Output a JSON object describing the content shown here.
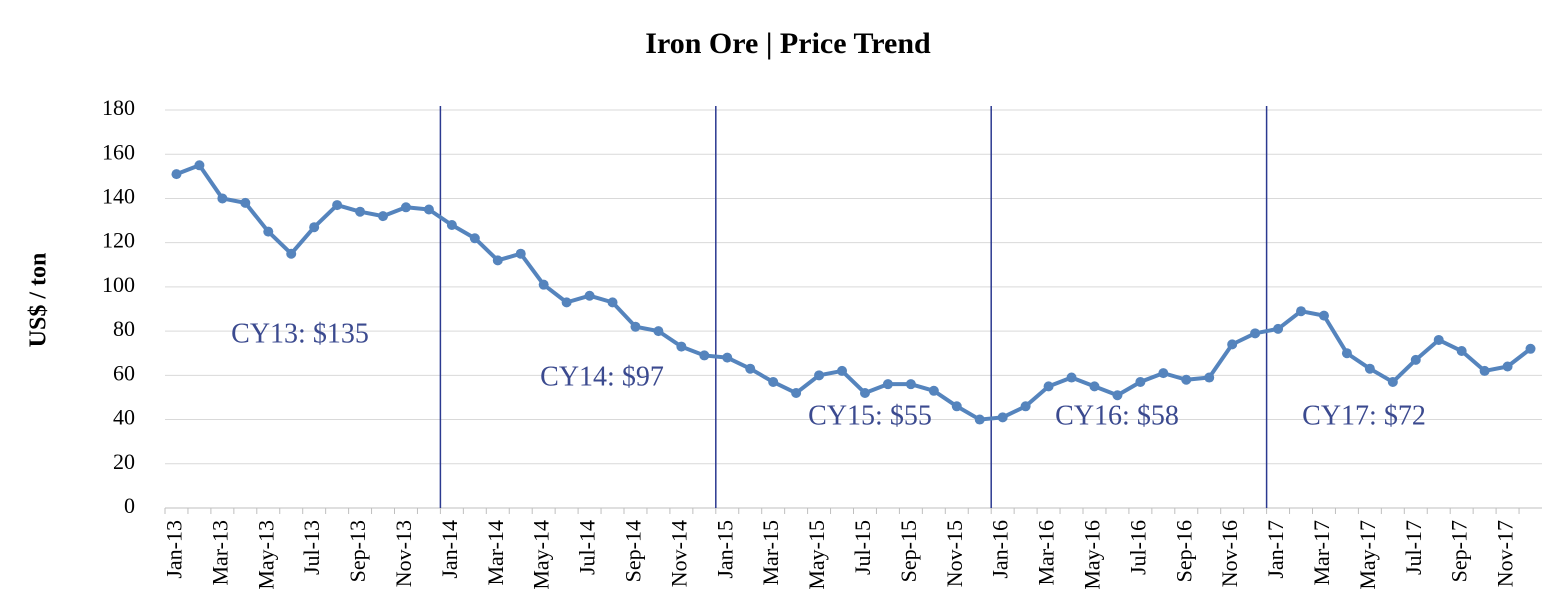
{
  "chart_data": {
    "type": "line",
    "title": "Iron Ore | Price Trend",
    "y_label": "US$ / ton",
    "categories": [
      "Jan-13",
      null,
      "Mar-13",
      null,
      "May-13",
      null,
      "Jul-13",
      null,
      "Sep-13",
      null,
      "Nov-13",
      null,
      "Jan-14",
      null,
      "Mar-14",
      null,
      "May-14",
      null,
      "Jul-14",
      null,
      "Sep-14",
      null,
      "Nov-14",
      null,
      "Jan-15",
      null,
      "Mar-15",
      null,
      "May-15",
      null,
      "Jul-15",
      null,
      "Sep-15",
      null,
      "Nov-15",
      null,
      "Jan-16",
      null,
      "Mar-16",
      null,
      "May-16",
      null,
      "Jul-16",
      null,
      "Sep-16",
      null,
      "Nov-16",
      null,
      "Jan-17",
      null,
      "Mar-17",
      null,
      "May-17",
      null,
      "Jul-17",
      null,
      "Sep-17",
      null,
      "Nov-17",
      null
    ],
    "series": [
      {
        "name": "Iron Ore",
        "color": "#5584bd",
        "values": [
          151,
          155,
          140,
          138,
          125,
          115,
          127,
          137,
          134,
          132,
          136,
          135,
          128,
          122,
          112,
          115,
          101,
          93,
          96,
          93,
          82,
          80,
          73,
          69,
          68,
          63,
          57,
          52,
          60,
          62,
          52,
          56,
          56,
          53,
          46,
          40,
          41,
          46,
          55,
          59,
          55,
          51,
          57,
          61,
          58,
          59,
          74,
          79,
          81,
          89,
          87,
          70,
          63,
          57,
          67,
          76,
          71,
          62,
          64,
          72
        ]
      }
    ],
    "annotations": [
      "CY13: $135",
      "CY14: $97",
      "CY15: $55",
      "CY16: $58",
      "CY17: $72"
    ],
    "ylim": [
      0,
      180
    ],
    "yticks": [
      0,
      20,
      40,
      60,
      80,
      100,
      120,
      140,
      160,
      180
    ],
    "grid": true
  }
}
